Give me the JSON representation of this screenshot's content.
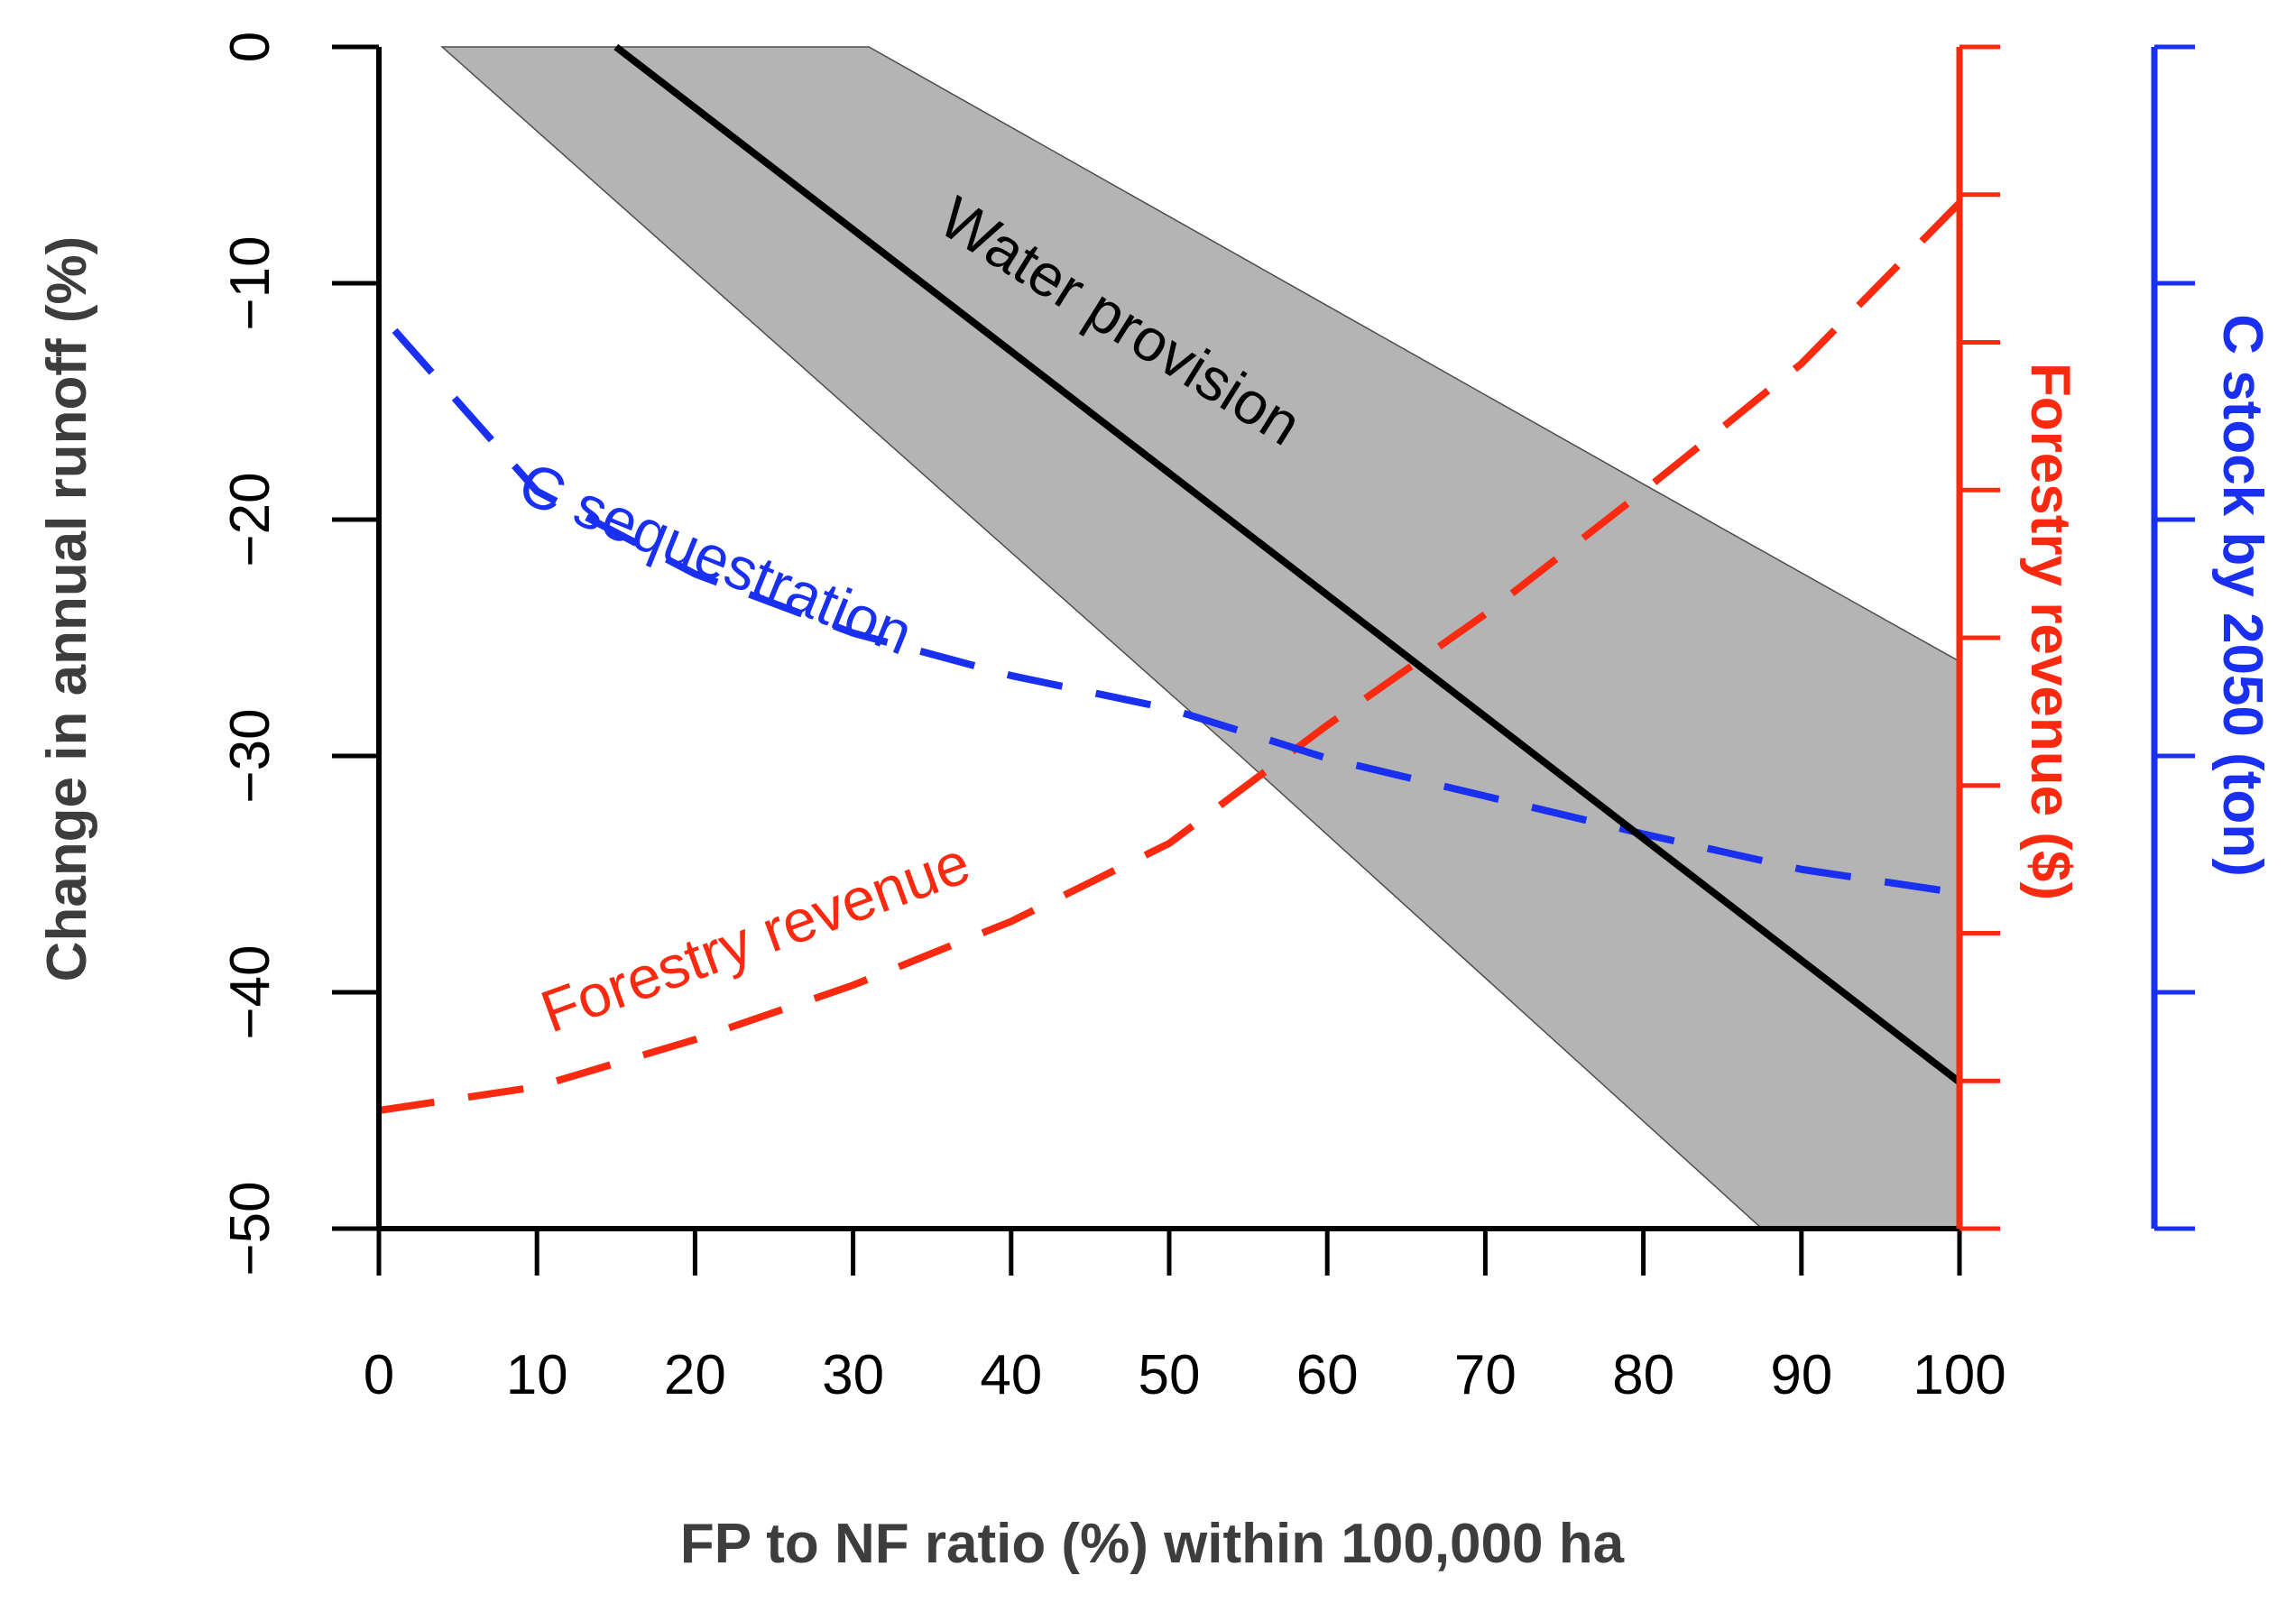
{
  "chart_data": {
    "type": "line",
    "title": "",
    "xlabel": "FP to NF ratio (%) within 100,000 ha",
    "ylabel": "Change in annual runoff (%)",
    "ylabel_right_inner": "Forestry revenue ($)",
    "ylabel_right_outer": "C stock by 2050 (ton)",
    "xlim": [
      0,
      100
    ],
    "ylim": [
      -50,
      0
    ],
    "x_ticks": [
      0,
      10,
      20,
      30,
      40,
      50,
      60,
      70,
      80,
      90,
      100
    ],
    "x_tick_labels": [
      "0",
      "10",
      "20",
      "30",
      "40",
      "50",
      "60",
      "70",
      "80",
      "90",
      "100"
    ],
    "y_ticks": [
      0,
      -10,
      -20,
      -30,
      -40,
      -50
    ],
    "y_tick_labels": [
      "0",
      "−10",
      "−20",
      "−30",
      "−40",
      "−50"
    ],
    "right_inner_tick_count": 9,
    "right_outer_tick_count": 6,
    "grid": false,
    "band": {
      "name": "Water provision range",
      "upper": [
        [
          4,
          0
        ],
        [
          31,
          0
        ],
        [
          80,
          -18.5
        ],
        [
          100,
          -26
        ]
      ],
      "lower": [
        [
          4,
          0
        ],
        [
          54.5,
          -30
        ],
        [
          87.5,
          -50
        ],
        [
          100,
          -50
        ]
      ]
    },
    "series": [
      {
        "name": "Water provision",
        "style": "solid",
        "x": [
          15,
          100
        ],
        "y": [
          0,
          -43.8
        ]
      },
      {
        "name": "C sequestration",
        "style": "dashed",
        "x": [
          1,
          10,
          20,
          30,
          40,
          50,
          60,
          70,
          80,
          90,
          100
        ],
        "y": [
          -12,
          -18.8,
          -22.3,
          -24.8,
          -26.6,
          -28,
          -30.1,
          -31.7,
          -33.3,
          -34.8,
          -35.8
        ]
      },
      {
        "name": "Forestry revenue",
        "style": "dashed",
        "x": [
          0,
          10,
          20,
          30,
          40,
          50,
          60,
          70,
          80,
          90,
          100
        ],
        "y": [
          -45,
          -44,
          -42,
          -39.7,
          -37,
          -33.7,
          -28.7,
          -24,
          -18.8,
          -13.4,
          -6.6
        ]
      }
    ],
    "annotations": {
      "water": "Water provision",
      "csq": "C sequestration",
      "forest": "Forestry revenue"
    },
    "colors": {
      "axis": "#000000",
      "band_fill": "#b4b4b4",
      "band_edge": "#4d4d4d",
      "water": "#000000",
      "csq": "#1a30f0",
      "forest": "#fa2a10",
      "axis_title": "#3d3d3d"
    }
  }
}
